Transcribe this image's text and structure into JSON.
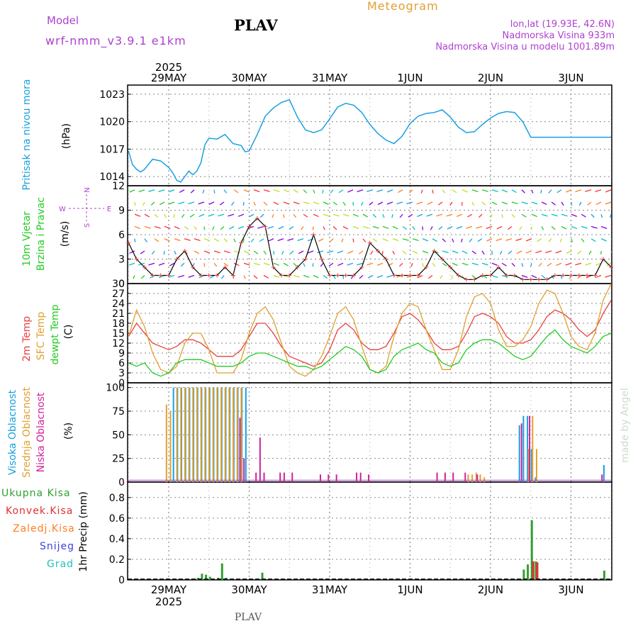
{
  "header": {
    "model_label": "Model",
    "model_name": "wrf-nmm_v3.9.1  e1km",
    "station": "PLAV",
    "meteogram": "Meteogram",
    "lonlat": "lon,lat (19.93E, 42.6N)",
    "elevation": "Nadmorska Visina 933m",
    "model_elevation": "Nadmorska Visina u modelu 1001.89m",
    "year_top": "2025",
    "year_bottom": "2025",
    "footer_station": "PLAV",
    "watermark": "made by Angel"
  },
  "colors": {
    "pressure": "#1aa0e0",
    "temp2m": "#e84040",
    "sfc": "#e0a030",
    "dewpt": "#22cc22",
    "cloud_high": "#1aa0e0",
    "cloud_mid": "#e0a030",
    "cloud_low": "#d0209a",
    "precip_total": "#30a030",
    "precip_conv": "#e03030",
    "precip_frz": "#ff7f20",
    "snow": "#4040e0",
    "hail": "#20c0c0",
    "purple": "#b040d0",
    "grid": "#888888"
  },
  "chart_data": [
    {
      "type": "line",
      "title": "Pritisak na nivou mora",
      "ylabel": "(hPa)",
      "ylim": [
        1013,
        1024
      ],
      "yticks": [
        1014,
        1017,
        1020,
        1023
      ],
      "x_dates": [
        "29MAY",
        "30MAY",
        "31MAY",
        "1JUN",
        "2JUN",
        "3JUN"
      ],
      "series": [
        {
          "name": "Pritisak na nivou mora",
          "x": [
            -0.5,
            -0.45,
            -0.4,
            -0.35,
            -0.3,
            -0.2,
            -0.1,
            0,
            0.05,
            0.1,
            0.15,
            0.2,
            0.25,
            0.3,
            0.35,
            0.4,
            0.45,
            0.5,
            0.6,
            0.7,
            0.8,
            0.9,
            0.95,
            1.0,
            1.1,
            1.2,
            1.3,
            1.4,
            1.5,
            1.6,
            1.7,
            1.8,
            1.9,
            2.0,
            2.1,
            2.2,
            2.3,
            2.4,
            2.5,
            2.6,
            2.7,
            2.8,
            2.9,
            3.0,
            3.1,
            3.2,
            3.3,
            3.4,
            3.5,
            3.6,
            3.7,
            3.8,
            3.9,
            4.0,
            4.1,
            4.2,
            4.3,
            4.4,
            4.5,
            4.6,
            4.7,
            4.8,
            4.9,
            5.0,
            5.1,
            5.2,
            5.3,
            5.4,
            5.5
          ],
          "values": [
            1016.8,
            1015.3,
            1014.8,
            1014.5,
            1014.8,
            1015.9,
            1015.7,
            1015.0,
            1014.4,
            1013.6,
            1013.4,
            1014.0,
            1014.6,
            1014.2,
            1014.6,
            1015.5,
            1017.5,
            1018.2,
            1018.1,
            1018.6,
            1017.6,
            1017.4,
            1016.7,
            1016.8,
            1018.6,
            1020.6,
            1021.5,
            1022.1,
            1022.4,
            1020.5,
            1019.1,
            1018.8,
            1019.1,
            1020.3,
            1021.6,
            1022.0,
            1021.8,
            1021.0,
            1019.7,
            1018.7,
            1018.0,
            1017.6,
            1018.4,
            1019.8,
            1020.6,
            1020.9,
            1021.0,
            1021.3,
            1020.5,
            1019.4,
            1018.8,
            1018.9,
            1019.7,
            1020.4,
            1020.9,
            1021.1,
            1021.0,
            1020.0,
            1018.3,
            1018.3,
            1018.3,
            1018.3,
            1018.3,
            1018.3,
            1018.3,
            1018.3,
            1018.3,
            1018.3,
            1018.3
          ]
        }
      ]
    },
    {
      "type": "line",
      "title": "10m Vjetar Brzina i Pravac",
      "ylabel": "(m/s)",
      "ylim": [
        0,
        12
      ],
      "yticks": [
        0,
        3,
        6,
        9,
        12
      ],
      "compass": {
        "n": "N",
        "s": "S",
        "w": "W",
        "e": "E"
      },
      "series": [
        {
          "name": "10m Vjetar",
          "x": [
            -0.5,
            -0.4,
            -0.3,
            -0.2,
            -0.1,
            0,
            0.1,
            0.2,
            0.3,
            0.4,
            0.5,
            0.6,
            0.7,
            0.8,
            0.9,
            1.0,
            1.1,
            1.2,
            1.3,
            1.4,
            1.5,
            1.6,
            1.7,
            1.8,
            1.9,
            2.0,
            2.1,
            2.2,
            2.3,
            2.4,
            2.5,
            2.6,
            2.7,
            2.8,
            2.9,
            3.0,
            3.1,
            3.2,
            3.3,
            3.4,
            3.5,
            3.6,
            3.7,
            3.8,
            3.9,
            4.0,
            4.1,
            4.2,
            4.3,
            4.4,
            4.5,
            4.6,
            4.7,
            4.8,
            4.9,
            5.0,
            5.1,
            5.2,
            5.3,
            5.4,
            5.5
          ],
          "values": [
            5,
            3,
            2,
            1,
            1,
            1,
            3,
            4,
            2,
            1,
            1,
            1,
            2,
            1,
            5,
            7,
            8,
            7,
            2,
            1,
            1,
            2,
            3,
            6,
            3,
            1,
            1,
            1,
            1,
            2,
            5,
            4,
            3,
            1,
            1,
            1,
            1,
            2,
            4,
            3,
            2,
            1,
            0.5,
            0.5,
            1,
            1,
            2,
            1,
            1,
            0.5,
            0.5,
            0.5,
            0.5,
            1,
            1,
            1,
            1,
            1,
            1,
            3,
            2
          ]
        }
      ]
    },
    {
      "type": "line",
      "ylabel": "(C)",
      "ylim": [
        0,
        30
      ],
      "yticks": [
        0,
        3,
        6,
        9,
        12,
        15,
        18,
        21,
        24,
        27,
        30
      ],
      "x": [
        -0.5,
        -0.4,
        -0.3,
        -0.2,
        -0.1,
        0,
        0.1,
        0.2,
        0.3,
        0.4,
        0.5,
        0.6,
        0.7,
        0.8,
        0.9,
        1.0,
        1.1,
        1.2,
        1.3,
        1.4,
        1.5,
        1.6,
        1.7,
        1.8,
        1.9,
        2.0,
        2.1,
        2.2,
        2.3,
        2.4,
        2.5,
        2.6,
        2.7,
        2.8,
        2.9,
        3.0,
        3.1,
        3.2,
        3.3,
        3.4,
        3.5,
        3.6,
        3.7,
        3.8,
        3.9,
        4.0,
        4.1,
        4.2,
        4.3,
        4.4,
        4.5,
        4.6,
        4.7,
        4.8,
        4.9,
        5.0,
        5.1,
        5.2,
        5.3,
        5.4,
        5.5
      ],
      "series": [
        {
          "name": "2m Temp",
          "values": [
            14,
            18,
            15,
            12,
            11,
            10,
            11,
            13,
            13,
            12,
            10,
            8,
            8,
            8,
            10,
            14,
            18,
            18,
            15,
            11,
            8,
            7,
            6,
            5,
            6,
            10,
            16,
            18,
            16,
            12,
            10,
            10,
            11,
            15,
            20,
            21,
            19,
            16,
            12,
            10,
            10,
            11,
            15,
            20,
            21,
            20,
            18,
            14,
            12,
            12,
            13,
            16,
            20,
            22,
            21,
            19,
            16,
            14,
            16,
            21,
            25
          ]
        },
        {
          "name": "SFC Temp",
          "values": [
            14,
            22,
            17,
            9,
            4,
            3,
            5,
            12,
            15,
            15,
            10,
            3,
            3,
            3,
            7,
            15,
            21,
            23,
            19,
            12,
            5,
            3,
            2,
            4,
            8,
            14,
            21,
            23,
            19,
            11,
            4,
            3,
            5,
            14,
            21,
            24,
            23,
            16,
            10,
            4,
            4,
            10,
            20,
            26,
            27,
            24,
            16,
            11,
            11,
            13,
            17,
            24,
            28,
            27,
            21,
            14,
            11,
            10,
            15,
            25,
            30
          ]
        },
        {
          "name": "dewpt Temp",
          "values": [
            6,
            5,
            6,
            3,
            2,
            3,
            6,
            7,
            7,
            7,
            6,
            5,
            5,
            5,
            6,
            8,
            9,
            9,
            8,
            7,
            6,
            5,
            5,
            4,
            5,
            7,
            9,
            11,
            10,
            8,
            4,
            3,
            4,
            8,
            10,
            11,
            12,
            10,
            9,
            6,
            5,
            6,
            10,
            12,
            13,
            13,
            12,
            10,
            8,
            7,
            8,
            11,
            14,
            16,
            13,
            11,
            10,
            9,
            11,
            14,
            15
          ]
        }
      ]
    },
    {
      "type": "bar",
      "ylabel": "(%)",
      "ylim": [
        0,
        105
      ],
      "yticks": [
        0,
        25,
        50,
        75,
        100
      ],
      "series": [
        {
          "name": "Visoka Oblacnost",
          "x": [
            0.05,
            0.1,
            0.15,
            0.2,
            0.25,
            0.3,
            0.35,
            0.4,
            0.45,
            0.5,
            0.55,
            0.6,
            0.65,
            0.7,
            0.75,
            0.8,
            0.85,
            0.9,
            0.95,
            4.35,
            4.4,
            4.45,
            4.5,
            4.55,
            5.4
          ],
          "values": [
            100,
            100,
            100,
            100,
            100,
            100,
            100,
            100,
            100,
            100,
            100,
            100,
            100,
            100,
            100,
            100,
            100,
            100,
            100,
            60,
            70,
            70,
            35,
            5,
            18
          ]
        },
        {
          "name": "Srednja Oblacnost",
          "x": [
            -0.05,
            0.0,
            0.08,
            0.13,
            0.18,
            0.23,
            0.28,
            0.33,
            0.38,
            0.43,
            0.48,
            0.53,
            0.58,
            0.63,
            0.68,
            0.73,
            0.78,
            0.83,
            0.88,
            3.7,
            3.75,
            3.8,
            3.85,
            3.9,
            4.45,
            4.5,
            4.55
          ],
          "values": [
            82,
            75,
            100,
            100,
            100,
            100,
            100,
            100,
            100,
            100,
            100,
            100,
            100,
            100,
            100,
            100,
            100,
            100,
            100,
            8,
            8,
            10,
            8,
            5,
            35,
            70,
            35
          ]
        },
        {
          "name": "Niska Oblacnost",
          "x": [
            -0.6,
            0.85,
            0.9,
            1.05,
            1.1,
            1.15,
            1.35,
            1.4,
            1.5,
            1.85,
            1.95,
            2.05,
            2.3,
            2.35,
            2.45,
            3.3,
            3.4,
            3.5,
            3.65,
            3.8,
            4.35,
            4.45,
            5.35
          ],
          "values": [
            2,
            68,
            25,
            10,
            47,
            10,
            10,
            10,
            10,
            8,
            8,
            8,
            10,
            10,
            8,
            10,
            10,
            10,
            10,
            8,
            62,
            70,
            8
          ]
        }
      ]
    },
    {
      "type": "bar",
      "ylabel": "1hr Precip (mm)",
      "ylim": [
        0,
        0.95
      ],
      "yticks": [
        0,
        0.2,
        0.4,
        0.6,
        0.8
      ],
      "series": [
        {
          "name": "Ukupna Kisa",
          "x": [
            0.35,
            0.4,
            0.45,
            0.5,
            0.6,
            0.65,
            0.7,
            1.15,
            4.4,
            4.45,
            4.5,
            4.55,
            5.4
          ],
          "values": [
            0.02,
            0.06,
            0.05,
            0.03,
            0.02,
            0.16,
            0.02,
            0.07,
            0.1,
            0.15,
            0.58,
            0.18,
            0.09
          ]
        },
        {
          "name": "Konvek.Kisa",
          "x": [
            4.5,
            4.55
          ],
          "values": [
            0.18,
            0.17
          ]
        },
        {
          "name": "Zaledj.Kisa",
          "x": [],
          "values": []
        },
        {
          "name": "Snijeg",
          "x": [],
          "values": []
        },
        {
          "name": "Grad",
          "x": [],
          "values": []
        }
      ]
    }
  ]
}
